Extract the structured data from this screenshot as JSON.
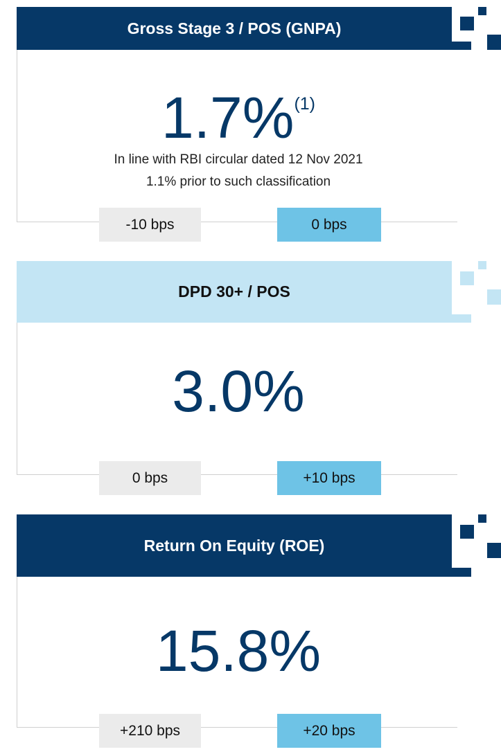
{
  "cards": [
    {
      "title": "Gross Stage 3 / POS (GNPA)",
      "value": "1.7%",
      "superscript": "(1)",
      "notes": [
        "In line with RBI circular dated 12 Nov 2021",
        "1.1% prior to such classification"
      ],
      "badges": [
        "-10 bps",
        "0 bps"
      ]
    },
    {
      "title": "DPD 30+ / POS",
      "value": "3.0%",
      "badges": [
        "0 bps",
        "+10 bps"
      ]
    },
    {
      "title": "Return On Equity (ROE)",
      "value": "15.8%",
      "badges": [
        "+210 bps",
        "+20 bps"
      ]
    }
  ]
}
